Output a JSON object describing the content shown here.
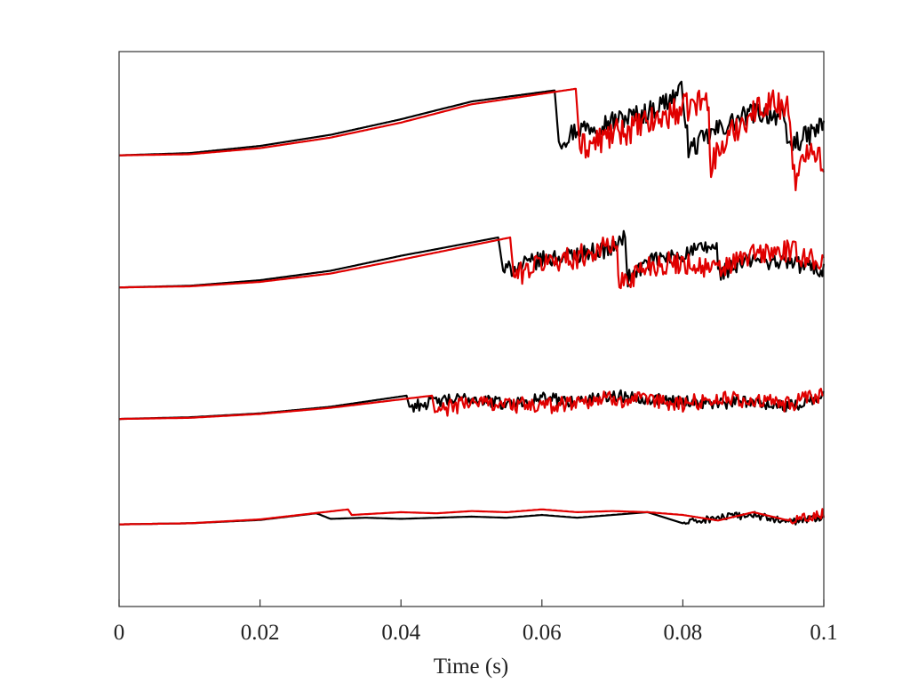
{
  "chart_data": {
    "type": "line",
    "title": "",
    "xlabel": "Time (s)",
    "ylabel": "",
    "xlim": [
      0,
      0.1
    ],
    "ylim": [
      0,
      1
    ],
    "x_ticks": [
      0,
      0.02,
      0.04,
      0.06,
      0.08,
      0.1
    ],
    "x_tick_labels": [
      "0",
      "0.02",
      "0.04",
      "0.06",
      "0.08",
      "0.1"
    ],
    "y_ticks": [],
    "grid": false,
    "legend": "none",
    "colors": {
      "black_series": "#000000",
      "red_series": "#e00000"
    },
    "series": [
      {
        "color": "#000000",
        "baseline": 0.813,
        "points": [
          [
            0,
            0.813
          ],
          [
            0.01,
            0.817
          ],
          [
            0.02,
            0.83
          ],
          [
            0.03,
            0.85
          ],
          [
            0.04,
            0.878
          ],
          [
            0.05,
            0.91
          ],
          [
            0.0618,
            0.93
          ],
          [
            0.0624,
            0.838
          ],
          [
            0.065,
            0.86
          ],
          [
            0.07,
            0.875
          ],
          [
            0.075,
            0.89
          ],
          [
            0.08,
            0.93
          ],
          [
            0.0808,
            0.822
          ],
          [
            0.085,
            0.86
          ],
          [
            0.09,
            0.89
          ],
          [
            0.094,
            0.885
          ],
          [
            0.095,
            0.83
          ],
          [
            0.098,
            0.85
          ],
          [
            0.1,
            0.87
          ]
        ]
      },
      {
        "color": "#e00000",
        "baseline": 0.813,
        "points": [
          [
            0,
            0.813
          ],
          [
            0.01,
            0.815
          ],
          [
            0.02,
            0.826
          ],
          [
            0.03,
            0.845
          ],
          [
            0.04,
            0.872
          ],
          [
            0.05,
            0.905
          ],
          [
            0.0648,
            0.933
          ],
          [
            0.0654,
            0.825
          ],
          [
            0.07,
            0.85
          ],
          [
            0.075,
            0.87
          ],
          [
            0.0835,
            0.915
          ],
          [
            0.084,
            0.8
          ],
          [
            0.088,
            0.87
          ],
          [
            0.092,
            0.91
          ],
          [
            0.095,
            0.9
          ],
          [
            0.096,
            0.755
          ],
          [
            0.098,
            0.84
          ],
          [
            0.1,
            0.8
          ]
        ]
      },
      {
        "color": "#000000",
        "baseline": 0.575,
        "points": [
          [
            0,
            0.575
          ],
          [
            0.01,
            0.578
          ],
          [
            0.02,
            0.588
          ],
          [
            0.03,
            0.605
          ],
          [
            0.04,
            0.632
          ],
          [
            0.0538,
            0.665
          ],
          [
            0.0545,
            0.605
          ],
          [
            0.06,
            0.625
          ],
          [
            0.065,
            0.635
          ],
          [
            0.07,
            0.645
          ],
          [
            0.0718,
            0.665
          ],
          [
            0.0722,
            0.59
          ],
          [
            0.075,
            0.62
          ],
          [
            0.08,
            0.635
          ],
          [
            0.0848,
            0.65
          ],
          [
            0.085,
            0.6
          ],
          [
            0.09,
            0.625
          ],
          [
            0.095,
            0.62
          ],
          [
            0.1,
            0.605
          ]
        ]
      },
      {
        "color": "#e00000",
        "baseline": 0.575,
        "points": [
          [
            0,
            0.575
          ],
          [
            0.01,
            0.577
          ],
          [
            0.02,
            0.585
          ],
          [
            0.03,
            0.6
          ],
          [
            0.04,
            0.625
          ],
          [
            0.0555,
            0.665
          ],
          [
            0.056,
            0.595
          ],
          [
            0.06,
            0.62
          ],
          [
            0.065,
            0.63
          ],
          [
            0.0705,
            0.655
          ],
          [
            0.071,
            0.58
          ],
          [
            0.075,
            0.615
          ],
          [
            0.08,
            0.62
          ],
          [
            0.085,
            0.605
          ],
          [
            0.09,
            0.635
          ],
          [
            0.095,
            0.64
          ],
          [
            0.1,
            0.62
          ]
        ]
      },
      {
        "color": "#000000",
        "baseline": 0.338,
        "points": [
          [
            0,
            0.338
          ],
          [
            0.01,
            0.341
          ],
          [
            0.02,
            0.348
          ],
          [
            0.03,
            0.36
          ],
          [
            0.0408,
            0.38
          ],
          [
            0.0412,
            0.36
          ],
          [
            0.045,
            0.37
          ],
          [
            0.05,
            0.375
          ],
          [
            0.055,
            0.365
          ],
          [
            0.06,
            0.375
          ],
          [
            0.065,
            0.37
          ],
          [
            0.07,
            0.38
          ],
          [
            0.075,
            0.375
          ],
          [
            0.08,
            0.37
          ],
          [
            0.085,
            0.365
          ],
          [
            0.09,
            0.37
          ],
          [
            0.095,
            0.36
          ],
          [
            0.1,
            0.38
          ]
        ]
      },
      {
        "color": "#e00000",
        "baseline": 0.338,
        "points": [
          [
            0,
            0.338
          ],
          [
            0.01,
            0.34
          ],
          [
            0.02,
            0.347
          ],
          [
            0.03,
            0.358
          ],
          [
            0.0444,
            0.38
          ],
          [
            0.0448,
            0.35
          ],
          [
            0.05,
            0.37
          ],
          [
            0.055,
            0.365
          ],
          [
            0.06,
            0.36
          ],
          [
            0.065,
            0.37
          ],
          [
            0.07,
            0.375
          ],
          [
            0.075,
            0.37
          ],
          [
            0.08,
            0.365
          ],
          [
            0.085,
            0.375
          ],
          [
            0.09,
            0.37
          ],
          [
            0.095,
            0.365
          ],
          [
            0.1,
            0.38
          ]
        ]
      },
      {
        "color": "#000000",
        "baseline": 0.148,
        "points": [
          [
            0,
            0.148
          ],
          [
            0.01,
            0.15
          ],
          [
            0.02,
            0.156
          ],
          [
            0.028,
            0.168
          ],
          [
            0.03,
            0.158
          ],
          [
            0.035,
            0.16
          ],
          [
            0.04,
            0.158
          ],
          [
            0.045,
            0.16
          ],
          [
            0.05,
            0.162
          ],
          [
            0.055,
            0.16
          ],
          [
            0.06,
            0.165
          ],
          [
            0.065,
            0.16
          ],
          [
            0.07,
            0.165
          ],
          [
            0.075,
            0.17
          ],
          [
            0.08,
            0.15
          ],
          [
            0.085,
            0.16
          ],
          [
            0.09,
            0.165
          ],
          [
            0.095,
            0.152
          ],
          [
            0.1,
            0.162
          ]
        ]
      },
      {
        "color": "#e00000",
        "baseline": 0.148,
        "points": [
          [
            0,
            0.148
          ],
          [
            0.01,
            0.15
          ],
          [
            0.02,
            0.157
          ],
          [
            0.0325,
            0.175
          ],
          [
            0.033,
            0.165
          ],
          [
            0.04,
            0.17
          ],
          [
            0.045,
            0.168
          ],
          [
            0.05,
            0.172
          ],
          [
            0.055,
            0.17
          ],
          [
            0.06,
            0.175
          ],
          [
            0.065,
            0.17
          ],
          [
            0.07,
            0.172
          ],
          [
            0.075,
            0.17
          ],
          [
            0.08,
            0.165
          ],
          [
            0.085,
            0.155
          ],
          [
            0.09,
            0.17
          ],
          [
            0.095,
            0.155
          ],
          [
            0.1,
            0.168
          ]
        ]
      }
    ]
  }
}
